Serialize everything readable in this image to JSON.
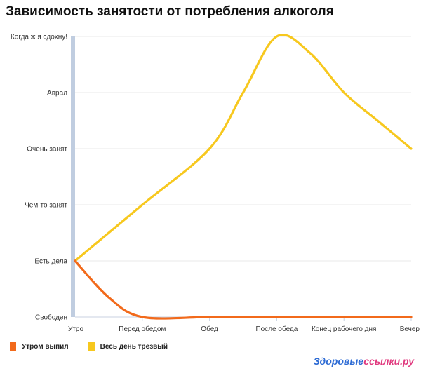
{
  "chart_data": {
    "type": "line",
    "title": "Зависимость занятости от потребления алкоголя",
    "x_categories": [
      "Утро",
      "Перед обедом",
      "Обед",
      "После обеда",
      "Конец рабочего дня",
      "Вечер"
    ],
    "y_categories": [
      "Свободен",
      "Есть дела",
      "Чем-то занят",
      "Очень занят",
      "Аврал",
      "Когда ж я сдохну!"
    ],
    "ylim": [
      0,
      5
    ],
    "grid": true,
    "legend_position": "bottom-left",
    "series": [
      {
        "name": "Утром выпил",
        "color": "#f26a1b",
        "points": [
          [
            0,
            1.0
          ],
          [
            0.5,
            0.35
          ],
          [
            1.0,
            0.0
          ],
          [
            2.0,
            0.0
          ],
          [
            3.0,
            0.0
          ],
          [
            4.0,
            0.0
          ],
          [
            5.0,
            0.0
          ]
        ]
      },
      {
        "name": "Весь день трезвый",
        "color": "#f7c81e",
        "points": [
          [
            0,
            1.0
          ],
          [
            1.0,
            2.0
          ],
          [
            2.0,
            3.0
          ],
          [
            2.5,
            4.0
          ],
          [
            3.0,
            5.0
          ],
          [
            3.5,
            4.7
          ],
          [
            4.0,
            4.0
          ],
          [
            4.5,
            3.5
          ],
          [
            5.0,
            3.0
          ]
        ]
      }
    ]
  },
  "watermark": {
    "part1": "Здоровые",
    "part2": "ссылки.ру"
  }
}
